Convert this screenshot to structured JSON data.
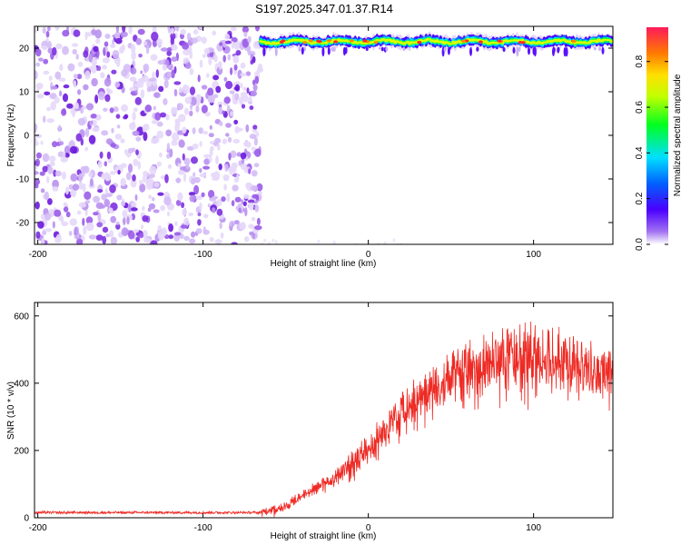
{
  "title": "S197.2025.347.01.37.R14",
  "colors": {
    "snr_line": "#ee2a24",
    "noise_fill": "#8a2be2",
    "ridge_colormap": "rainbow"
  },
  "chart_data": [
    {
      "type": "heatmap",
      "name": "spectrogram",
      "xlabel": "Height of straight line (km)",
      "ylabel": "Frequency (Hz)",
      "xlim": [
        -202,
        148
      ],
      "ylim": [
        -25,
        25
      ],
      "xticks": [
        -200,
        -100,
        0,
        100
      ],
      "yticks": [
        -20,
        -10,
        0,
        10,
        20
      ],
      "colorbar": {
        "label": "Normalized spectral amplitude",
        "range": [
          0,
          0.95
        ],
        "ticks": [
          "0.0",
          "0.2",
          "0.4",
          "0.6",
          "0.8"
        ]
      },
      "regions": [
        {
          "x": [
            -202,
            -65
          ],
          "y": [
            -25,
            25
          ],
          "amplitude": 0.05,
          "pattern": "speckled noise"
        },
        {
          "x": [
            -65,
            148
          ],
          "y": [
            19,
            24
          ],
          "amplitude": 0.9,
          "pattern": "ridge at about 21.5 Hz"
        }
      ]
    },
    {
      "type": "line",
      "name": "snr",
      "xlabel": "Height of straight line (km)",
      "ylabel": "SNR (10 * v/v)",
      "xlim": [
        -202,
        148
      ],
      "ylim": [
        0,
        640
      ],
      "xticks": [
        -200,
        -100,
        0,
        100
      ],
      "yticks": [
        0,
        200,
        400,
        600
      ],
      "trend": {
        "x": [
          -202,
          -100,
          -65,
          -50,
          -40,
          -20,
          0,
          20,
          40,
          60,
          80,
          100,
          120,
          140,
          148
        ],
        "y": [
          15,
          15,
          15,
          35,
          70,
          120,
          210,
          320,
          390,
          440,
          470,
          490,
          470,
          430,
          430
        ]
      }
    }
  ]
}
